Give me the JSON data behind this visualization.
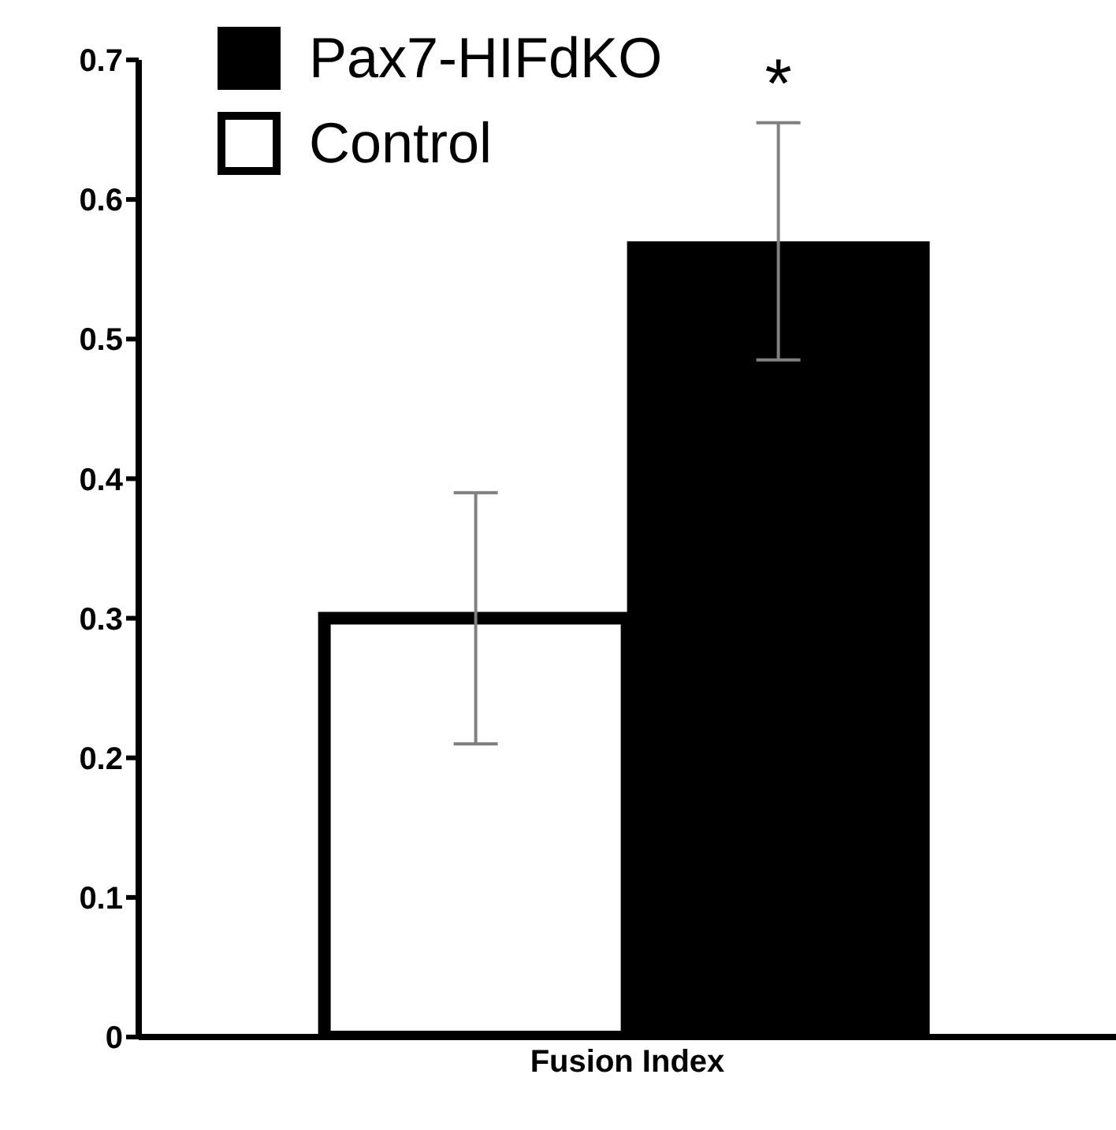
{
  "chart_data": {
    "type": "bar",
    "categories": [
      "Fusion Index"
    ],
    "series": [
      {
        "name": "Control",
        "color": "#ffffff",
        "values": [
          0.3
        ],
        "errors": [
          0.09
        ]
      },
      {
        "name": "Pax7-HIFdKO",
        "color": "#000000",
        "values": [
          0.57
        ],
        "errors": [
          0.085
        ]
      }
    ],
    "ylim": [
      0,
      0.7
    ],
    "yticks": [
      0,
      0.1,
      0.2,
      0.3,
      0.4,
      0.5,
      0.6,
      0.7
    ],
    "grid": false,
    "legend": "top left",
    "annotations": [
      "*"
    ]
  }
}
